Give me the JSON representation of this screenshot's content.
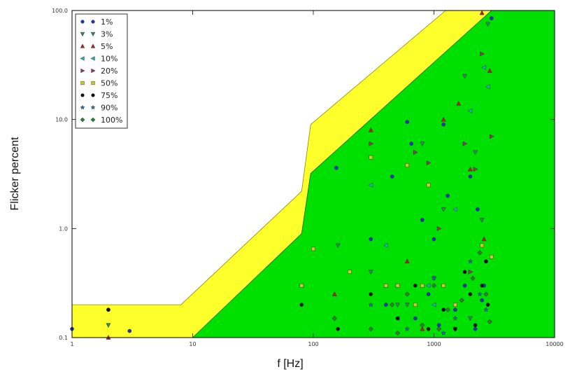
{
  "chart_data": {
    "type": "scatter",
    "title": "",
    "xlabel": "f [Hz]",
    "ylabel": "Flicker percent",
    "xscale": "log",
    "yscale": "log",
    "xlim": [
      1,
      10000
    ],
    "ylim": [
      0.1,
      100
    ],
    "grid": false,
    "legend_position": "top-left",
    "x_ticks": [
      "1",
      "10",
      "100",
      "1000",
      "10000"
    ],
    "y_ticks": [
      "0.1",
      "1.0",
      "10.0",
      "100.0"
    ],
    "regions": [
      {
        "name": "",
        "color": "#ffff2b",
        "edge_color": "#888800",
        "boundary": [
          [
            1,
            0.2
          ],
          [
            8,
            0.2
          ],
          [
            80,
            2.2
          ],
          [
            95,
            9.0
          ],
          [
            1250,
            100
          ],
          [
            10000,
            100
          ],
          [
            10000,
            0.1
          ],
          [
            1,
            0.1
          ]
        ]
      },
      {
        "name": "",
        "color": "#00e000",
        "edge_color": "#006600",
        "boundary": [
          [
            10,
            0.1
          ],
          [
            80,
            0.9
          ],
          [
            95,
            3.2
          ],
          [
            3000,
            100
          ],
          [
            10000,
            100
          ],
          [
            10000,
            0.1
          ]
        ]
      }
    ],
    "series": [
      {
        "name": "1%",
        "marker": "circle",
        "color": "#2233bb",
        "x": [
          1,
          2,
          3,
          155,
          300,
          450,
          600,
          650,
          800,
          1000,
          1200,
          1300,
          1800,
          2000,
          2300,
          2500,
          2700,
          3000,
          700,
          1500,
          900,
          2200,
          400,
          1100,
          2600
        ],
        "y": [
          0.12,
          0.18,
          0.115,
          3.6,
          0.8,
          3.0,
          9.5,
          6.0,
          1.2,
          0.8,
          9.0,
          2.0,
          0.3,
          3.0,
          1.5,
          0.22,
          0.5,
          85,
          0.15,
          0.18,
          0.25,
          0.12,
          0.2,
          0.13,
          0.3
        ]
      },
      {
        "name": "3%",
        "marker": "triangle-down",
        "color": "#2e8b57",
        "x": [
          2,
          160,
          300,
          500,
          800,
          1200,
          1800,
          2200,
          2500,
          2800,
          600,
          1000,
          2000,
          1500
        ],
        "y": [
          0.13,
          0.7,
          0.4,
          0.2,
          6.0,
          1.5,
          25,
          5.0,
          1.2,
          75,
          0.2,
          0.35,
          0.15,
          0.12
        ]
      },
      {
        "name": "5%",
        "marker": "triangle-up",
        "color": "#b22222",
        "x": [
          2,
          150,
          300,
          600,
          1200,
          1600,
          2000,
          2500,
          2900,
          2600,
          800,
          400
        ],
        "y": [
          0.1,
          0.25,
          8.0,
          0.5,
          10,
          14,
          3.5,
          95,
          28,
          0.8,
          0.12,
          0.3
        ]
      },
      {
        "name": "10%",
        "marker": "triangle-left",
        "color": "#20b2aa",
        "x": [
          80,
          300,
          400,
          900,
          1500,
          2000,
          2600,
          2800,
          1000,
          500
        ],
        "y": [
          0.3,
          2.5,
          0.7,
          0.3,
          1.5,
          12,
          30,
          20,
          0.2,
          0.15
        ]
      },
      {
        "name": "20%",
        "marker": "triangle-right",
        "color": "#8b3a62",
        "x": [
          300,
          500,
          700,
          900,
          1100,
          1800,
          2200,
          2500,
          3000,
          2000
        ],
        "y": [
          6.0,
          0.3,
          5.0,
          4.0,
          1.0,
          6.0,
          3.5,
          40,
          7.0,
          0.4
        ]
      },
      {
        "name": "50%",
        "marker": "square",
        "color": "#c8c830",
        "x": [
          80,
          100,
          200,
          300,
          400,
          500,
          600,
          700,
          800,
          900,
          1200,
          1500,
          2500,
          3000
        ],
        "y": [
          0.3,
          0.65,
          0.4,
          4.5,
          0.3,
          0.3,
          3.8,
          0.2,
          0.3,
          2.5,
          0.3,
          0.2,
          0.7,
          0.55
        ]
      },
      {
        "name": "75%",
        "marker": "circle",
        "color": "#111111",
        "x": [
          2,
          80,
          160,
          300,
          500,
          700,
          900,
          1200,
          1500,
          2000,
          2500,
          2700,
          2200,
          1800,
          2800
        ],
        "y": [
          0.18,
          0.2,
          0.12,
          0.25,
          0.15,
          0.3,
          0.12,
          0.18,
          0.12,
          0.25,
          0.3,
          0.5,
          0.13,
          0.4,
          0.2
        ]
      },
      {
        "name": "90%",
        "marker": "star",
        "color": "#1e6bbf",
        "x": [
          300,
          600,
          1000,
          1500,
          2000,
          2400,
          2700,
          1200
        ],
        "y": [
          0.2,
          0.12,
          0.35,
          0.15,
          0.5,
          0.25,
          0.18,
          0.11
        ]
      },
      {
        "name": "100%",
        "marker": "diamond",
        "color": "#2e7d32",
        "x": [
          150,
          300,
          450,
          600,
          800,
          1000,
          1300,
          1700,
          2100,
          2400,
          2700,
          2900,
          500,
          1100
        ],
        "y": [
          0.15,
          0.12,
          0.2,
          0.25,
          0.13,
          0.3,
          0.18,
          0.22,
          0.35,
          0.6,
          0.25,
          0.14,
          0.11,
          0.12
        ]
      }
    ]
  }
}
